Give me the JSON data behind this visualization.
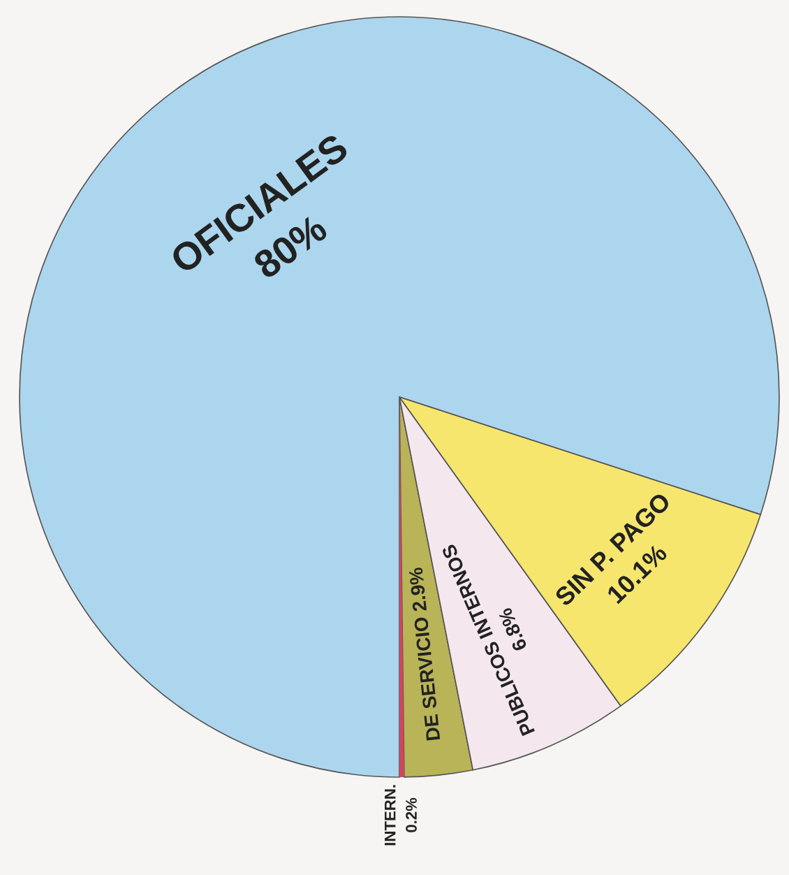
{
  "chart_data": {
    "type": "pie",
    "categories": [
      "INTERN.",
      "DE SERVICIO",
      "PUBLICOS INTERNOS",
      "SIN P. PAGO",
      "OFICIALES"
    ],
    "values": [
      0.2,
      2.9,
      6.8,
      10.1,
      80
    ],
    "colors": [
      "#d2455e",
      "#b9b457",
      "#f4e8ee",
      "#f6e66e",
      "#acd6ee"
    ],
    "value_labels": [
      "0.2%",
      "2.9%",
      "6.8%",
      "10.1%",
      "80%"
    ]
  }
}
